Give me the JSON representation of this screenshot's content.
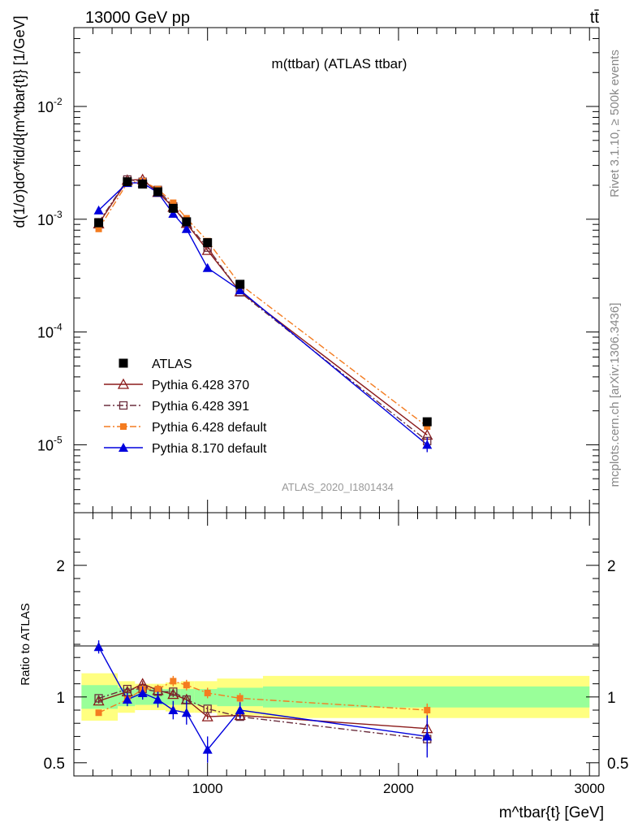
{
  "header": {
    "left": "13000 GeV pp",
    "right": "tt̄"
  },
  "side_labels": {
    "rivet": "Rivet 3.1.10, ≥ 500k events",
    "mcplots": "mcplots.cern.ch [arXiv:1306.3436]"
  },
  "chart_data": [
    {
      "type": "scatter",
      "title": "m(ttbar) (ATLAS ttbar)",
      "analysis_label": "ATLAS_2020_I1801434",
      "ylabel": "d(1/σ)dσ^fid/d{m^tbar{t}} [1/GeV]",
      "yscale": "log",
      "ylim": [
        2.5e-06,
        0.05
      ],
      "xlim": [
        300,
        3050
      ],
      "y_ticks": [
        {
          "value": 0.01,
          "base": "10",
          "exp": "-2"
        },
        {
          "value": 0.001,
          "base": "10",
          "exp": "-3"
        },
        {
          "value": 0.0001,
          "base": "10",
          "exp": "-4"
        },
        {
          "value": 1e-05,
          "base": "10",
          "exp": "-5"
        }
      ],
      "legend_position": "bottom-left",
      "series": [
        {
          "name": "ATLAS",
          "color": "#000000",
          "marker": "square-filled",
          "line": "none",
          "x": [
            430,
            580,
            660,
            740,
            820,
            890,
            1000,
            1170,
            2150
          ],
          "y": [
            0.00093,
            0.00215,
            0.00205,
            0.00175,
            0.00125,
            0.00095,
            0.00062,
            0.000265,
            1.6e-05
          ]
        },
        {
          "name": "Pythia 6.428 370",
          "color": "#8b1a1a",
          "marker": "triangle-open",
          "line": "solid",
          "x": [
            430,
            580,
            660,
            740,
            820,
            890,
            1000,
            1170,
            2150
          ],
          "y": [
            0.00091,
            0.00222,
            0.00225,
            0.00173,
            0.00128,
            0.00092,
            0.00053,
            0.000228,
            1.22e-05
          ]
        },
        {
          "name": "Pythia 6.428 391",
          "color": "#6b2e3e",
          "marker": "square-open",
          "line": "dashdot",
          "x": [
            430,
            580,
            660,
            740,
            820,
            890,
            1000,
            1170,
            2150
          ],
          "y": [
            0.00094,
            0.00225,
            0.00215,
            0.00182,
            0.0013,
            0.00093,
            0.00056,
            0.000225,
            1.08e-05
          ]
        },
        {
          "name": "Pythia 6.428 default",
          "color": "#f47c20",
          "marker": "square-filled-small",
          "line": "dashdot",
          "x": [
            430,
            580,
            660,
            740,
            820,
            890,
            1000,
            1170,
            2150
          ],
          "y": [
            0.00082,
            0.0021,
            0.00218,
            0.00185,
            0.0014,
            0.00102,
            0.00064,
            0.000265,
            1.45e-05
          ]
        },
        {
          "name": "Pythia 8.170 default",
          "color": "#0000dd",
          "marker": "triangle-filled",
          "line": "solid",
          "x": [
            430,
            580,
            660,
            740,
            820,
            890,
            1000,
            1170,
            2150
          ],
          "y": [
            0.0012,
            0.0021,
            0.0021,
            0.00172,
            0.00112,
            0.00082,
            0.00037,
            0.000235,
            1e-05
          ]
        }
      ]
    },
    {
      "type": "scatter",
      "ylabel": "Ratio to ATLAS",
      "xlabel": "m^tbar{t} [GeV]",
      "ylim": [
        0.4,
        2.4
      ],
      "xlim": [
        300,
        3050
      ],
      "x_ticks": [
        "1000",
        "2000",
        "3000"
      ],
      "y_ticks": [
        "0.5",
        "1",
        "2"
      ],
      "bands": [
        {
          "x0": 340,
          "x1": 530,
          "inner": 0.09,
          "outer": 0.18
        },
        {
          "x0": 530,
          "x1": 620,
          "inner": 0.07,
          "outer": 0.12
        },
        {
          "x0": 620,
          "x1": 700,
          "inner": 0.06,
          "outer": 0.1
        },
        {
          "x0": 700,
          "x1": 780,
          "inner": 0.06,
          "outer": 0.1
        },
        {
          "x0": 780,
          "x1": 860,
          "inner": 0.06,
          "outer": 0.11
        },
        {
          "x0": 860,
          "x1": 930,
          "inner": 0.06,
          "outer": 0.12
        },
        {
          "x0": 930,
          "x1": 1050,
          "inner": 0.06,
          "outer": 0.12
        },
        {
          "x0": 1050,
          "x1": 1290,
          "inner": 0.07,
          "outer": 0.14
        },
        {
          "x0": 1290,
          "x1": 3000,
          "inner": 0.08,
          "outer": 0.16
        }
      ],
      "series": [
        {
          "name": "Pythia 6.428 370",
          "color": "#8b1a1a",
          "marker": "triangle-open",
          "line": "solid",
          "x": [
            430,
            580,
            660,
            740,
            820,
            890,
            1000,
            1170,
            2150
          ],
          "y": [
            0.97,
            1.04,
            1.1,
            1.05,
            1.02,
            0.98,
            0.85,
            0.86,
            0.76
          ],
          "err": [
            0.02,
            0.02,
            0.02,
            0.02,
            0.02,
            0.02,
            0.02,
            0.03,
            0.06
          ]
        },
        {
          "name": "Pythia 6.428 391",
          "color": "#6b2e3e",
          "marker": "square-open",
          "line": "dashdot",
          "x": [
            430,
            580,
            660,
            740,
            820,
            890,
            1000,
            1170,
            2150
          ],
          "y": [
            0.99,
            1.06,
            1.06,
            1.04,
            1.04,
            0.98,
            0.91,
            0.85,
            0.68
          ],
          "err": [
            0.02,
            0.02,
            0.02,
            0.02,
            0.02,
            0.02,
            0.02,
            0.03,
            0.06
          ]
        },
        {
          "name": "Pythia 6.428 default",
          "color": "#f47c20",
          "marker": "square-filled-small",
          "line": "dashdot",
          "x": [
            430,
            580,
            660,
            740,
            820,
            890,
            1000,
            1170,
            2150
          ],
          "y": [
            0.88,
            0.98,
            1.06,
            1.06,
            1.12,
            1.09,
            1.03,
            0.99,
            0.9
          ],
          "err": [
            0.02,
            0.03,
            0.03,
            0.03,
            0.04,
            0.04,
            0.04,
            0.04,
            0.05
          ]
        },
        {
          "name": "Pythia 8.170 default",
          "color": "#0000dd",
          "marker": "triangle-filled",
          "line": "solid",
          "x": [
            430,
            580,
            660,
            740,
            820,
            890,
            1000,
            1170,
            2150
          ],
          "y": [
            1.38,
            0.98,
            1.03,
            0.98,
            0.9,
            0.88,
            0.6,
            0.9,
            0.7
          ],
          "err": [
            0.05,
            0.05,
            0.05,
            0.06,
            0.07,
            0.09,
            0.1,
            0.06,
            0.16
          ]
        }
      ]
    }
  ]
}
